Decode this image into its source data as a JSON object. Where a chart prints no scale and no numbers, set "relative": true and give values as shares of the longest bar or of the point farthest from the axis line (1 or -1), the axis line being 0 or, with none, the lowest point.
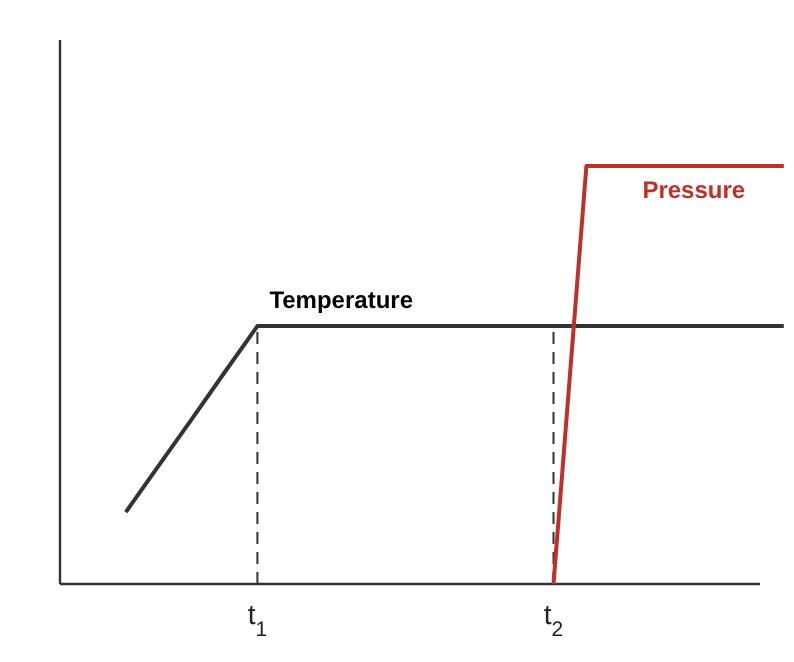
{
  "chart_data": {
    "type": "line",
    "relative": true,
    "categories": [
      null,
      null,
      null,
      null,
      null,
      null,
      "t$_{1}$",
      null,
      null,
      null,
      null,
      null,
      null,
      null,
      null,
      "t$_{2}$",
      null,
      null,
      null,
      null,
      null,
      null,
      null
    ],
    "series": [
      {
        "name": "Temperature",
        "color": "#333333",
        "values": [
          null,
          null,
          0.172,
          0.283,
          0.394,
          0.506,
          0.617,
          0.617,
          0.617,
          0.617,
          0.617,
          0.617,
          0.617,
          0.617,
          0.617,
          0.617,
          0.617,
          0.617,
          0.617,
          0.617,
          0.617,
          0.617,
          0.617
        ]
      },
      {
        "name": "Pressure",
        "color": "#c0302a",
        "values": [
          null,
          null,
          null,
          null,
          null,
          null,
          null,
          null,
          null,
          null,
          null,
          null,
          null,
          null,
          null,
          0,
          1,
          1,
          1,
          1,
          1,
          1,
          1
        ]
      }
    ],
    "ref_lines": [
      {
        "axis": "x",
        "value": "t$_{1}$",
        "line_style": "dashed"
      },
      {
        "axis": "x",
        "value": "t$_{2}$",
        "line_style": "dashed"
      }
    ],
    "grid": false,
    "legend": false,
    "marker": "none",
    "line_style": "solid"
  }
}
